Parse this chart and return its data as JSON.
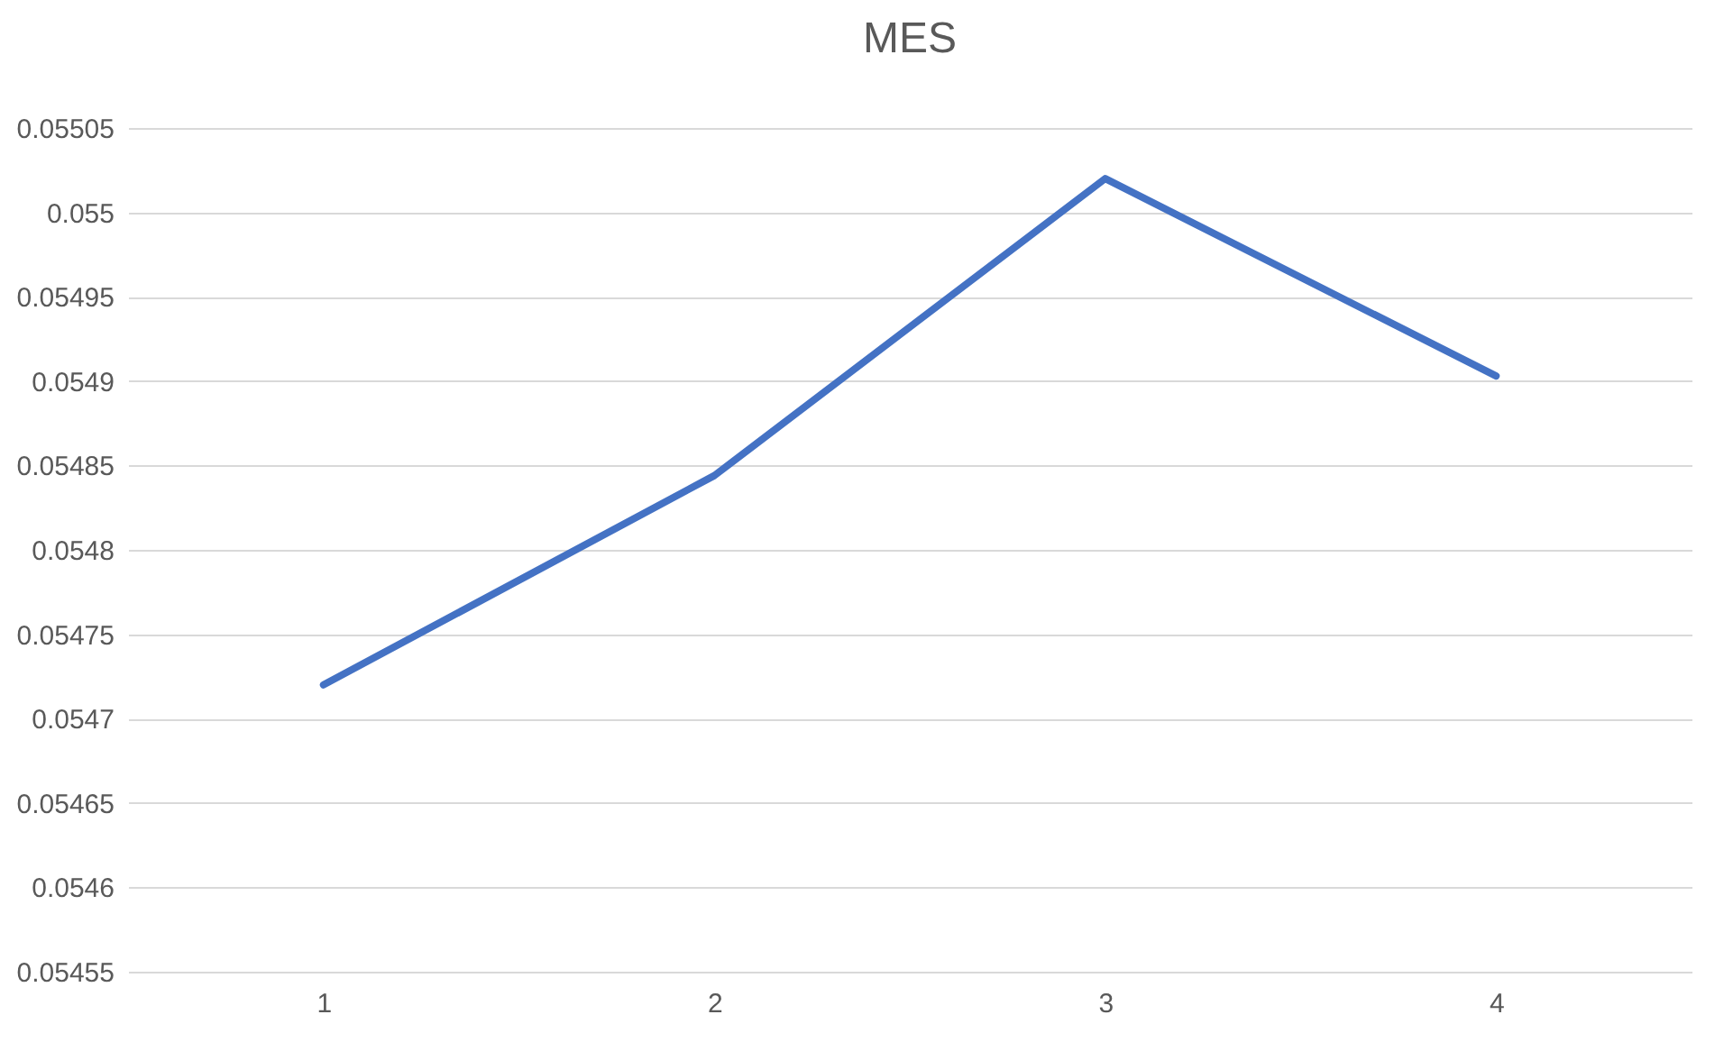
{
  "chart_data": {
    "type": "line",
    "title": "MES",
    "categories": [
      "1",
      "2",
      "3",
      "4"
    ],
    "series": [
      {
        "color": "#4472c4",
        "values": [
          0.05472,
          0.054844,
          0.05502,
          0.054903
        ]
      }
    ],
    "ylim": [
      0.05455,
      0.05505
    ],
    "yticks": [
      0.05455,
      0.0546,
      0.05465,
      0.0547,
      0.05475,
      0.0548,
      0.05485,
      0.0549,
      0.05495,
      0.055,
      0.05505
    ],
    "grid": "y",
    "marker": "none",
    "line_style": "solid"
  }
}
